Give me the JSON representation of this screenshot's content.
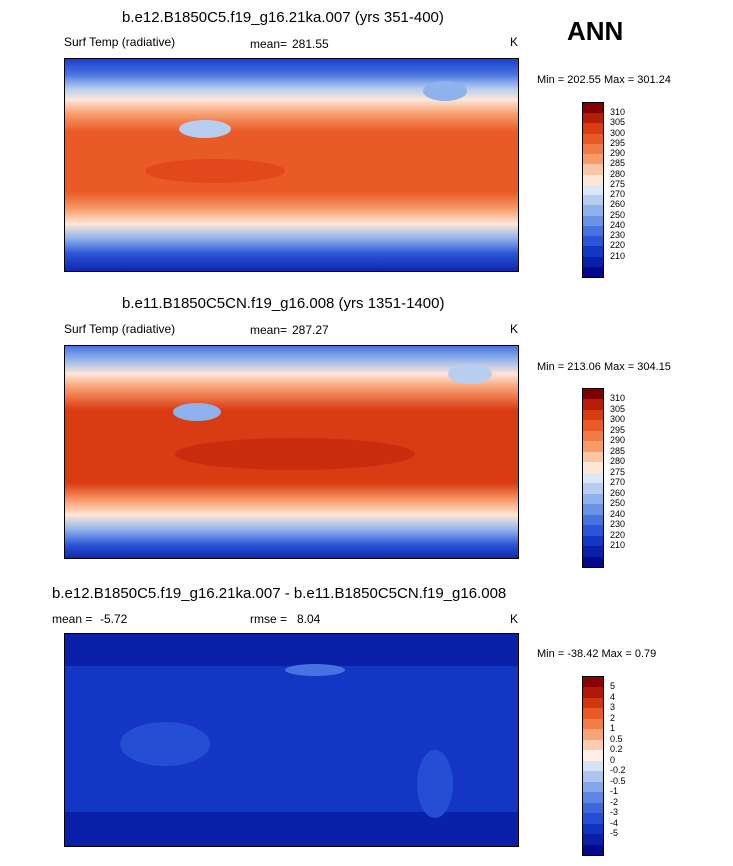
{
  "season": "ANN",
  "colors": {
    "abs_scale": [
      "#7f0000",
      "#b51d06",
      "#d93b13",
      "#ea5a26",
      "#f27a44",
      "#f79a6a",
      "#fbc4a5",
      "#fde7d7",
      "#dbe7f7",
      "#b7cef0",
      "#8fb1ec",
      "#6a93e6",
      "#4773e0",
      "#2a55d6",
      "#1436c4",
      "#0b20a8",
      "#03098a"
    ],
    "diff_scale": [
      "#8b0000",
      "#b0190a",
      "#d33513",
      "#ea5a26",
      "#f47d46",
      "#f8a47a",
      "#fccbb1",
      "#fff1e6",
      "#d6e2f6",
      "#aec5f0",
      "#86a6ea",
      "#5e86e3",
      "#3e69dd",
      "#244ed3",
      "#1232c2",
      "#0a1fa6",
      "#03098a"
    ]
  },
  "panels": [
    {
      "title": "b.e12.B1850C5.f19_g16.21ka.007 (yrs 351-400)",
      "variable": "Surf Temp (radiative)",
      "mean_label": "mean=",
      "mean_value": "281.55",
      "units": "K",
      "minmax": "Min = 202.55 Max = 301.24",
      "colorbar_labels": [
        "310",
        "305",
        "300",
        "295",
        "290",
        "285",
        "280",
        "275",
        "270",
        "260",
        "250",
        "240",
        "230",
        "220",
        "210"
      ]
    },
    {
      "title": "b.e11.B1850C5CN.f19_g16.008 (yrs 1351-1400)",
      "variable": "Surf Temp (radiative)",
      "mean_label": "mean=",
      "mean_value": "287.27",
      "units": "K",
      "minmax": "Min = 213.06 Max = 304.15",
      "colorbar_labels": [
        "310",
        "305",
        "300",
        "295",
        "290",
        "285",
        "280",
        "275",
        "270",
        "260",
        "250",
        "240",
        "230",
        "220",
        "210"
      ]
    },
    {
      "title": "b.e12.B1850C5.f19_g16.21ka.007 - b.e11.B1850C5CN.f19_g16.008",
      "mean_label": "mean =",
      "mean_value": "-5.72",
      "rmse_label": "rmse =",
      "rmse_value": "8.04",
      "units": "K",
      "minmax": "Min = -38.42 Max =   0.79",
      "colorbar_labels": [
        "5",
        "4",
        "3",
        "2",
        "1",
        "0.5",
        "0.2",
        "0",
        "-0.2",
        "-0.5",
        "-1",
        "-2",
        "-3",
        "-4",
        "-5"
      ]
    }
  ],
  "chart_data": [
    {
      "type": "heatmap",
      "title": "b.e12.B1850C5.f19_g16.21ka.007 (yrs 351-400)",
      "variable": "Surf Temp (radiative)",
      "units": "K",
      "mean": 281.55,
      "min": 202.55,
      "max": 301.24,
      "levels": [
        210,
        220,
        230,
        240,
        250,
        260,
        270,
        275,
        280,
        285,
        290,
        295,
        300,
        305,
        310
      ]
    },
    {
      "type": "heatmap",
      "title": "b.e11.B1850C5CN.f19_g16.008 (yrs 1351-1400)",
      "variable": "Surf Temp (radiative)",
      "units": "K",
      "mean": 287.27,
      "min": 213.06,
      "max": 304.15,
      "levels": [
        210,
        220,
        230,
        240,
        250,
        260,
        270,
        275,
        280,
        285,
        290,
        295,
        300,
        305,
        310
      ]
    },
    {
      "type": "heatmap",
      "title": "b.e12.B1850C5.f19_g16.21ka.007 - b.e11.B1850C5CN.f19_g16.008",
      "units": "K",
      "mean": -5.72,
      "rmse": 8.04,
      "min": -38.42,
      "max": 0.79,
      "levels": [
        -5,
        -4,
        -3,
        -2,
        -1,
        -0.5,
        -0.2,
        0,
        0.2,
        0.5,
        1,
        2,
        3,
        4,
        5
      ]
    }
  ]
}
